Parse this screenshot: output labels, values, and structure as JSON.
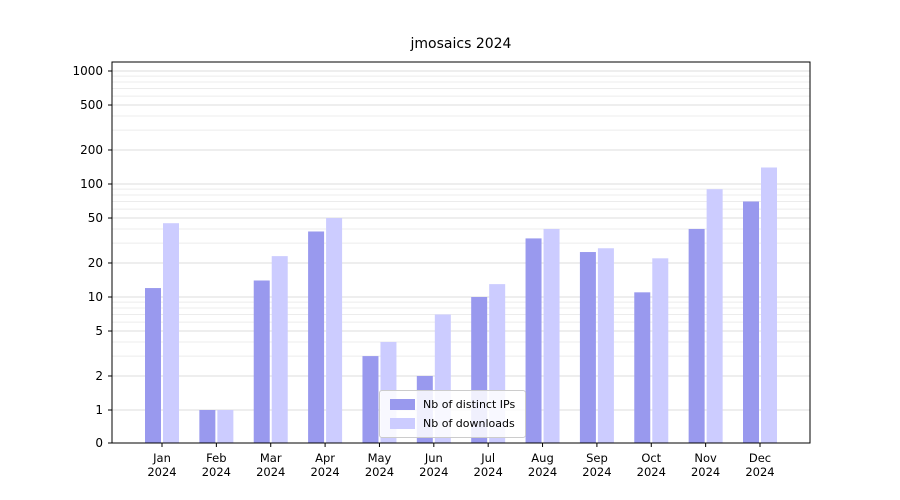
{
  "title": "jmosaics 2024",
  "colors": {
    "distinct_ips": "#9999ee",
    "downloads": "#ccccff",
    "grid_major": "#dcdcdc",
    "grid_minor": "#ececec",
    "axis": "#000000",
    "background": "#ffffff"
  },
  "chart_data": {
    "type": "bar",
    "title": "jmosaics 2024",
    "categories": [
      "Jan 2024",
      "Feb 2024",
      "Mar 2024",
      "Apr 2024",
      "May 2024",
      "Jun 2024",
      "Jul 2024",
      "Aug 2024",
      "Sep 2024",
      "Oct 2024",
      "Nov 2024",
      "Dec 2024"
    ],
    "series": [
      {
        "name": "Nb of distinct IPs",
        "values": [
          12,
          1,
          14,
          38,
          3,
          2,
          10,
          33,
          25,
          11,
          40,
          70
        ]
      },
      {
        "name": "Nb of downloads",
        "values": [
          45,
          1,
          23,
          50,
          4,
          7,
          13,
          40,
          27,
          22,
          90,
          140
        ]
      }
    ],
    "xlabel": "",
    "ylabel": "",
    "yscale": "symlog",
    "yticks": [
      0,
      1,
      2,
      5,
      10,
      20,
      50,
      100,
      200,
      500,
      1000
    ],
    "ylim": [
      0,
      1100
    ],
    "grid": true,
    "legend_position": "lower center"
  }
}
